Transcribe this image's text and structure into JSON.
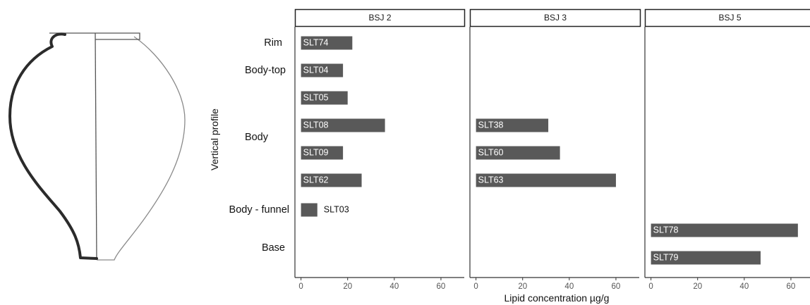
{
  "chart_data": {
    "type": "bar",
    "orientation": "horizontal",
    "facets": [
      "BSJ 2",
      "BSJ 3",
      "BSJ 5"
    ],
    "categories": [
      "Rim",
      "Body-top",
      "Body",
      "Body - funnel",
      "Base"
    ],
    "xlabel": "Lipid concentration µg/g",
    "ylabel": "Vertical profile",
    "xlim": [
      -2,
      70
    ],
    "xticks": [
      0,
      20,
      40,
      60
    ],
    "grid": false,
    "bar_color": "#595959",
    "facets_data": [
      {
        "facet": "BSJ 2",
        "bars": [
          {
            "label": "SLT74",
            "category": "Rim",
            "value": 22
          },
          {
            "label": "SLT04",
            "category": "Body-top",
            "value": 18
          },
          {
            "label": "SLT05",
            "category": "Body",
            "value": 20
          },
          {
            "label": "SLT08",
            "category": "Body",
            "value": 36
          },
          {
            "label": "SLT09",
            "category": "Body",
            "value": 18
          },
          {
            "label": "SLT62",
            "category": "Body",
            "value": 26
          },
          {
            "label": "SLT03",
            "category": "Body - funnel",
            "value": 7
          }
        ]
      },
      {
        "facet": "BSJ 3",
        "bars": [
          {
            "label": "SLT38",
            "category": "Body",
            "value": 31
          },
          {
            "label": "SLT60",
            "category": "Body",
            "value": 36
          },
          {
            "label": "SLT63",
            "category": "Body",
            "value": 60
          }
        ]
      },
      {
        "facet": "BSJ 5",
        "bars": [
          {
            "label": "SLT78",
            "category": "Base",
            "value": 63
          },
          {
            "label": "SLT79",
            "category": "Base",
            "value": 47
          }
        ]
      }
    ]
  }
}
